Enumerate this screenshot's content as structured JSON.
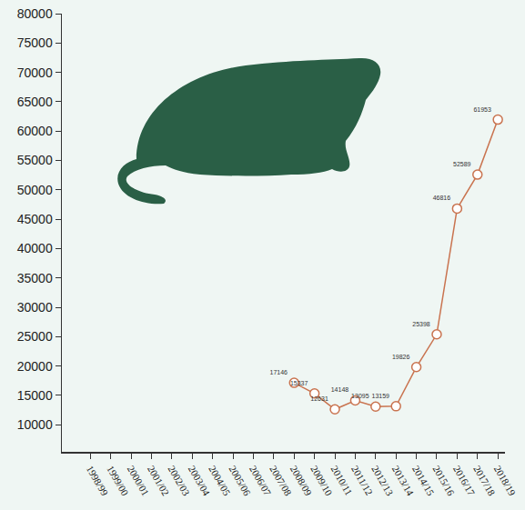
{
  "chart_data": {
    "type": "line",
    "categories": [
      "1998/99",
      "1999/00",
      "2000/01",
      "2001/02",
      "2002/03",
      "2003/04",
      "2004/05",
      "2005/06",
      "2006/07",
      "2007/08",
      "2008/09",
      "2009/10",
      "2010/11",
      "2011/12",
      "2012/13",
      "2013/14",
      "2014/15",
      "2015/16",
      "2016/17",
      "2017/18",
      "2018/19"
    ],
    "values": [
      null,
      null,
      null,
      null,
      null,
      null,
      null,
      null,
      null,
      null,
      17146,
      15337,
      12631,
      14148,
      13095,
      13159,
      19826,
      25398,
      46816,
      52589,
      61953
    ],
    "color": "#c9734f",
    "marker": "open circle",
    "ylim": [
      5400,
      80000
    ],
    "yticks": [
      10000,
      15000,
      20000,
      25000,
      30000,
      35000,
      40000,
      45000,
      50000,
      55000,
      60000,
      65000,
      70000,
      75000,
      80000
    ],
    "grid": false,
    "data_labels": true
  }
}
